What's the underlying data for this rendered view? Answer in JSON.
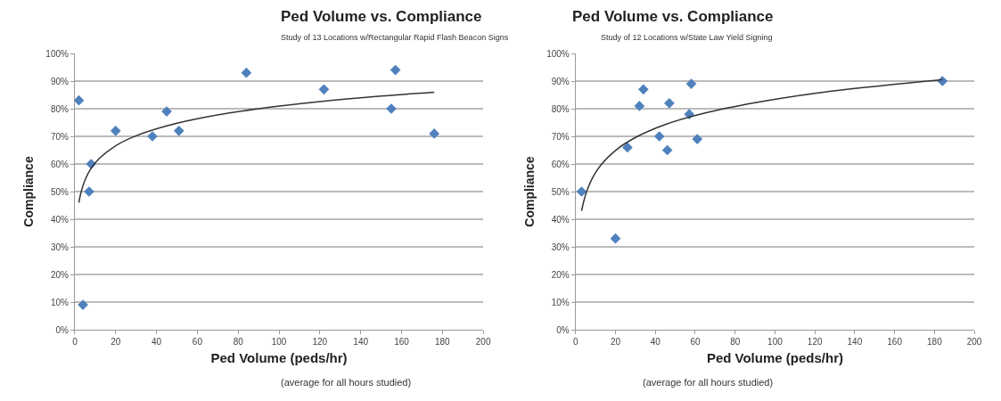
{
  "chart_data": [
    {
      "type": "scatter",
      "title": "Ped Volume vs. Compliance",
      "subtitle": "Study of 13 Locations w/Rectangular Rapid Flash Beacon Signs",
      "xlabel": "Ped Volume (peds/hr)",
      "ylabel": "Compliance",
      "annotations": [
        "(average for all hours studied)"
      ],
      "xlim": [
        0,
        200
      ],
      "xticks": [
        0,
        20,
        40,
        60,
        80,
        100,
        120,
        140,
        160,
        180,
        200
      ],
      "ylim": [
        0,
        100
      ],
      "yticks": [
        {
          "value": 0,
          "label": "0%"
        },
        {
          "value": 10,
          "label": "10%"
        },
        {
          "value": 20,
          "label": "20%"
        },
        {
          "value": 30,
          "label": "30%"
        },
        {
          "value": 40,
          "label": "40%"
        },
        {
          "value": 50,
          "label": "50%"
        },
        {
          "value": 60,
          "label": "60%"
        },
        {
          "value": 70,
          "label": "70%"
        },
        {
          "value": 80,
          "label": "80%"
        },
        {
          "value": 90,
          "label": "90%"
        },
        {
          "value": 100,
          "label": "100%"
        }
      ],
      "grid": "y",
      "marker": "diamond",
      "series": [
        {
          "color": "#4f81bd",
          "x": [
            2,
            4,
            7,
            8,
            20,
            38,
            45,
            51,
            84,
            122,
            155,
            157,
            176
          ],
          "values": [
            83,
            9,
            50,
            60,
            72,
            70,
            79,
            72,
            93,
            87,
            80,
            94,
            71
          ]
        },
        {
          "type": "line",
          "color": "#333333",
          "marker": "none",
          "x": [
            2,
            3,
            5,
            8,
            12,
            20,
            30,
            45,
            65,
            90,
            120,
            150,
            176
          ],
          "values": [
            46,
            49.6,
            54.2,
            58.4,
            62,
            66.6,
            70.2,
            73.8,
            77.1,
            80,
            82.6,
            84.6,
            86
          ]
        }
      ]
    },
    {
      "type": "scatter",
      "title": "Ped Volume vs. Compliance",
      "subtitle": "Study of 12 Locations w/State Law Yield Signing",
      "xlabel": "Ped Volume (peds/hr)",
      "ylabel": "Compliance",
      "annotations": [
        "(average for all hours studied)"
      ],
      "xlim": [
        0,
        200
      ],
      "xticks": [
        0,
        20,
        40,
        60,
        80,
        100,
        120,
        140,
        160,
        180,
        200
      ],
      "ylim": [
        0,
        100
      ],
      "yticks": [
        {
          "value": 0,
          "label": "0%"
        },
        {
          "value": 10,
          "label": "10%"
        },
        {
          "value": 20,
          "label": "20%"
        },
        {
          "value": 30,
          "label": "30%"
        },
        {
          "value": 40,
          "label": "40%"
        },
        {
          "value": 50,
          "label": "50%"
        },
        {
          "value": 60,
          "label": "60%"
        },
        {
          "value": 70,
          "label": "70%"
        },
        {
          "value": 80,
          "label": "80%"
        },
        {
          "value": 90,
          "label": "90%"
        },
        {
          "value": 100,
          "label": "100%"
        }
      ],
      "grid": "y",
      "marker": "diamond",
      "series": [
        {
          "color": "#4f81bd",
          "x": [
            3,
            20,
            26,
            32,
            34,
            42,
            46,
            47,
            57,
            58,
            61,
            184
          ],
          "values": [
            50,
            33,
            66,
            81,
            87,
            70,
            65,
            82,
            78,
            89,
            69,
            90
          ]
        },
        {
          "type": "line",
          "color": "#333333",
          "marker": "none",
          "x": [
            3,
            4,
            6,
            9,
            13,
            20,
            30,
            45,
            65,
            90,
            120,
            150,
            184
          ],
          "values": [
            43,
            46.3,
            51,
            55.7,
            59.9,
            64.9,
            69.6,
            74.3,
            78.5,
            82.2,
            85.6,
            88.1,
            90.5
          ]
        }
      ]
    }
  ]
}
